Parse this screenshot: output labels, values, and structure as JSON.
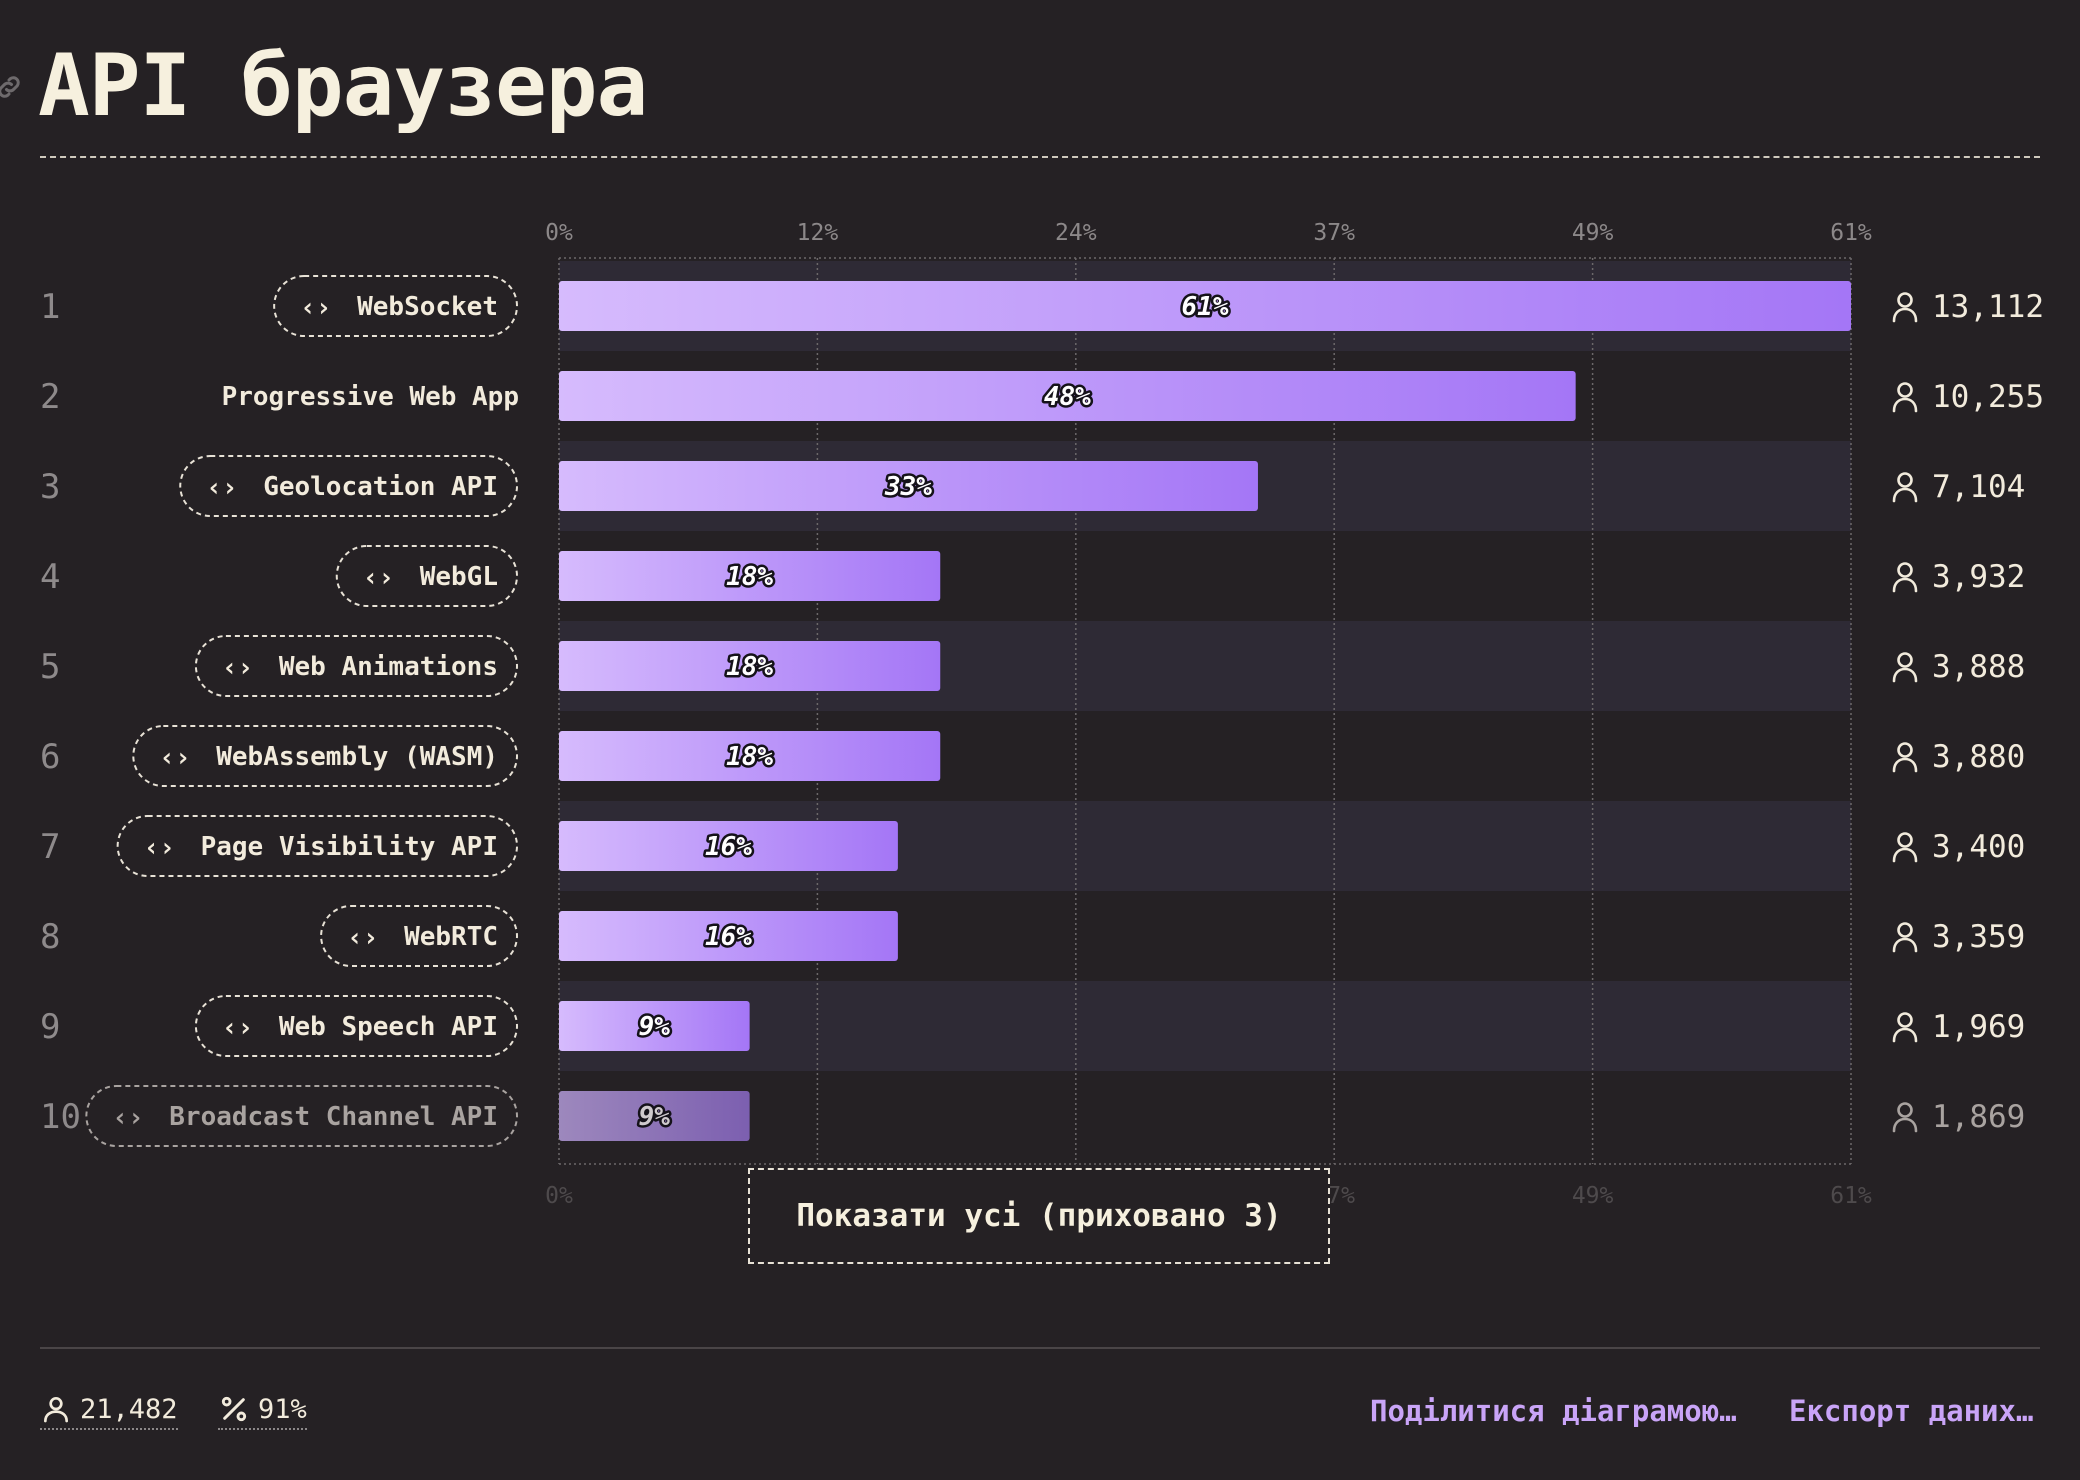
{
  "title": "API браузера",
  "colors": {
    "bar_start": "#d6bbfd",
    "bar_end": "#a476f6",
    "bar_dim_start": "#9d88bd",
    "bar_dim_end": "#7c5fb0",
    "row_stripe": "#2e2a35",
    "grid": "#6c686a",
    "badge_border": "#e8e2d6"
  },
  "chart_data": {
    "type": "bar",
    "orientation": "horizontal",
    "title": "API браузера",
    "xlim": [
      0,
      61
    ],
    "x_ticks": [
      "0%",
      "12%",
      "24%",
      "37%",
      "49%",
      "61%"
    ],
    "x_tick_values": [
      0,
      12.2,
      24.4,
      36.6,
      48.8,
      61
    ],
    "grid": true,
    "categories": [
      "WebSocket",
      "Progressive Web App",
      "Geolocation API",
      "WebGL",
      "Web Animations",
      "WebAssembly (WASM)",
      "Page Visibility API",
      "WebRTC",
      "Web Speech API",
      "Broadcast Channel API"
    ],
    "ranks": [
      "1",
      "2",
      "3",
      "4",
      "5",
      "6",
      "7",
      "8",
      "9",
      "10"
    ],
    "values": [
      61,
      48,
      33,
      18,
      18,
      18,
      16,
      16,
      9,
      9
    ],
    "value_labels": [
      "61%",
      "48%",
      "33%",
      "18%",
      "18%",
      "18%",
      "16%",
      "16%",
      "9%",
      "9%"
    ],
    "counts": [
      "13,112",
      "10,255",
      "7,104",
      "3,932",
      "3,888",
      "3,880",
      "3,400",
      "3,359",
      "1,969",
      "1,869"
    ],
    "is_api": [
      true,
      false,
      true,
      true,
      true,
      true,
      true,
      true,
      true,
      true
    ],
    "dimmed": [
      false,
      false,
      false,
      false,
      false,
      false,
      false,
      false,
      false,
      true
    ],
    "icons": {
      "api": "code-brackets-icon",
      "count": "user-icon"
    }
  },
  "show_all_label": "Показати усі (приховано 3)",
  "footer": {
    "respondents": "21,482",
    "percent": "91%",
    "share_label": "Поділитися діаграмою…",
    "export_label": "Експорт даних…"
  }
}
